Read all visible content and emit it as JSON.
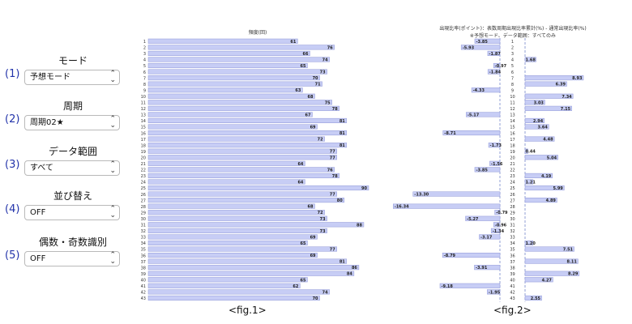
{
  "controls": [
    {
      "num": "(1)",
      "label": "モード",
      "value": "予想モード"
    },
    {
      "num": "(2)",
      "label": "周期",
      "value": "周期02★"
    },
    {
      "num": "(3)",
      "label": "データ範囲",
      "value": "すべて"
    },
    {
      "num": "(4)",
      "label": "並び替え",
      "value": "OFF"
    },
    {
      "num": "(5)",
      "label": "偶数・奇数識別",
      "value": "OFF"
    }
  ],
  "colors": {
    "bar_fill": "#c7cdf5",
    "bar_stroke": "#8f97d8",
    "dashed_line": "#7788cc"
  },
  "chart_data": [
    {
      "type": "bar",
      "orientation": "horizontal",
      "title": "頻度(回)",
      "caption": "<fig.1>",
      "categories": [
        "1",
        "2",
        "3",
        "4",
        "5",
        "6",
        "7",
        "8",
        "9",
        "10",
        "11",
        "12",
        "13",
        "14",
        "15",
        "16",
        "17",
        "18",
        "19",
        "20",
        "21",
        "22",
        "23",
        "24",
        "25",
        "26",
        "27",
        "28",
        "29",
        "30",
        "31",
        "32",
        "33",
        "34",
        "35",
        "36",
        "37",
        "38",
        "39",
        "40",
        "41",
        "42",
        "43"
      ],
      "values": [
        61,
        76,
        66,
        74,
        65,
        73,
        70,
        71,
        63,
        68,
        75,
        78,
        67,
        81,
        69,
        81,
        72,
        81,
        77,
        77,
        64,
        76,
        78,
        64,
        90,
        77,
        80,
        68,
        72,
        73,
        88,
        73,
        69,
        65,
        77,
        69,
        81,
        86,
        84,
        65,
        62,
        74,
        70
      ],
      "xlim": [
        0,
        90
      ]
    },
    {
      "type": "bar",
      "orientation": "horizontal",
      "title": "出現比率(ポイント)：表数周期出現比率累計(%) - 通常出現比率(%)",
      "subtitle": "※予想モード、データ範囲：すべてのみ",
      "caption": "<fig.2>",
      "categories": [
        "1",
        "2",
        "3",
        "4",
        "5",
        "6",
        "7",
        "8",
        "9",
        "10",
        "11",
        "12",
        "13",
        "14",
        "15",
        "16",
        "17",
        "18",
        "19",
        "20",
        "21",
        "22",
        "23",
        "24",
        "25",
        "26",
        "27",
        "28",
        "29",
        "30",
        "31",
        "32",
        "33",
        "34",
        "35",
        "36",
        "37",
        "38",
        "39",
        "40",
        "41",
        "42",
        "43"
      ],
      "values": [
        -3.85,
        -5.93,
        -1.87,
        1.68,
        -0.97,
        -1.84,
        8.93,
        6.39,
        -4.33,
        7.34,
        3.03,
        7.15,
        -5.17,
        2.94,
        3.64,
        -8.71,
        4.48,
        -1.73,
        0.44,
        5.04,
        -1.56,
        -3.85,
        4.19,
        1.21,
        5.99,
        -13.3,
        4.89,
        -16.34,
        -0.79,
        -5.27,
        -0.96,
        -1.34,
        -3.17,
        1.2,
        7.51,
        -8.79,
        8.11,
        -3.91,
        8.29,
        4.27,
        -9.18,
        -1.95,
        2.55
      ],
      "value_labels": [
        "-3.85",
        "-5.93",
        "-1.87",
        "1.68",
        "-0.97",
        "-1.84",
        "8.93",
        "6.39",
        "-4.33",
        "7.34",
        "3.03",
        "7.15",
        "-5.17",
        "2.94",
        "3.64",
        "-8.71",
        "4.48",
        "-1.73",
        "0.44",
        "5.04",
        "-1.56",
        "-3.85",
        "4.19",
        "1.21",
        "5.99",
        "-13.30",
        "4.89",
        "-16.34",
        "-0.79",
        "-5.27",
        "-0.96",
        "-1.34",
        "-3.17",
        "1.20",
        "7.51",
        "-8.79",
        "8.11",
        "-3.91",
        "8.29",
        "4.27",
        "-9.18",
        "-1.95",
        "2.55"
      ]
    }
  ]
}
